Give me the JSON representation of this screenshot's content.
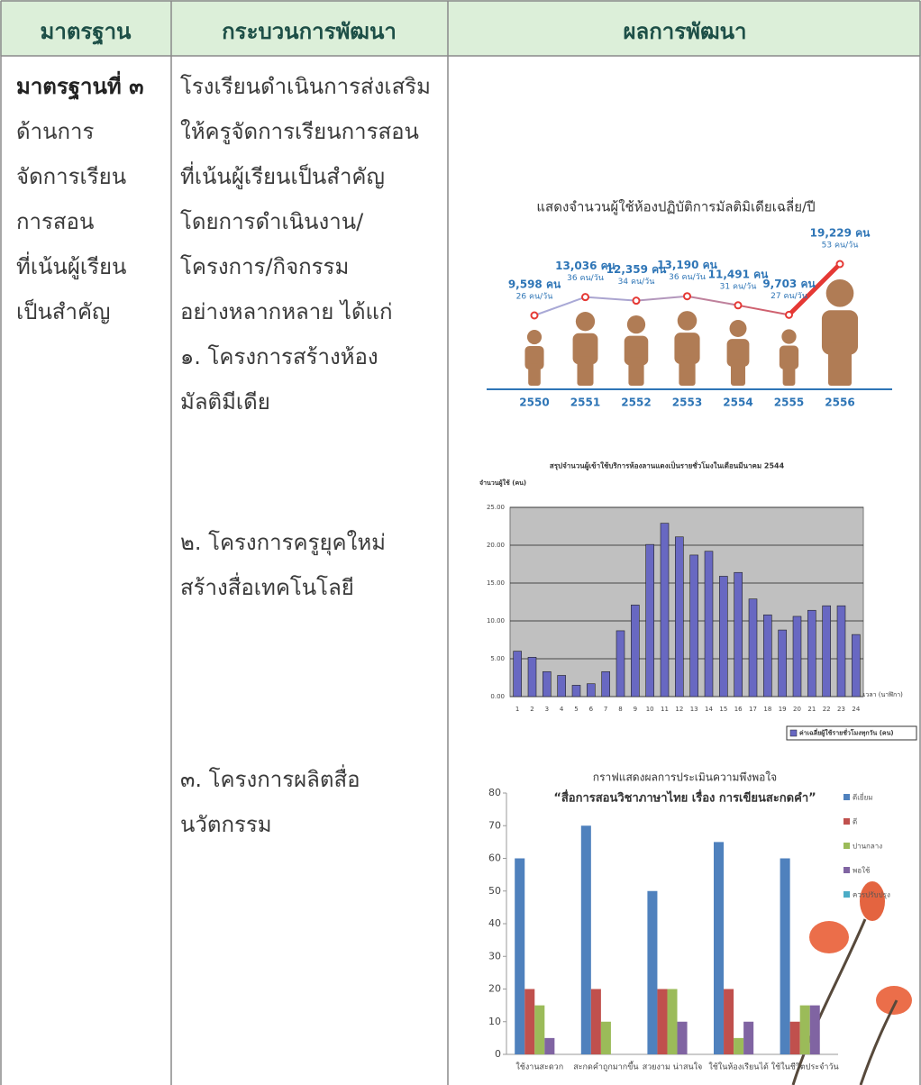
{
  "table": {
    "headers": [
      "มาตรฐาน",
      "กระบวนการพัฒนา",
      "ผลการพัฒนา"
    ],
    "rows": [
      {
        "standard": [
          "มาตรฐานที่ ๓",
          "ด้านการ",
          "จัดการเรียน",
          "การสอน",
          "ที่เน้นผู้เรียน",
          "เป็นสำคัญ"
        ],
        "process": {
          "intro": [
            "โรงเรียนดำเนินการส่งเสริม",
            "ให้ครูจัดการเรียนการสอน",
            "ที่เน้นผู้เรียนเป็นสำคัญ",
            "โดยการดำเนินงาน/",
            "โครงการ/กิจกรรม",
            "อย่างหลากหลาย ได้แก่"
          ],
          "items": [
            [
              "๑. โครงการสร้างห้อง",
              "มัลติมีเดีย"
            ],
            [
              "๒. โครงการครูยุคใหม่",
              "สร้างสื่อเทคโนโลยี"
            ],
            [
              "๓. โครงการผลิตสื่อ",
              "นวัตกรรม"
            ]
          ]
        }
      }
    ]
  },
  "chart_data": [
    {
      "type": "line",
      "title": "แสดงจำนวนผู้ใช้ห้องปฏิบัติการมัลติมิเดียเฉลี่ย/ปี",
      "categories": [
        "2550",
        "2551",
        "2552",
        "2553",
        "2554",
        "2555",
        "2556"
      ],
      "values": [
        9598,
        13036,
        12359,
        13190,
        11491,
        9703,
        19229
      ],
      "value_labels": [
        "9,598 คน",
        "13,036 คน",
        "12,359 คน",
        "13,190 คน",
        "11,491 คน",
        "9,703 คน",
        "19,229 คน"
      ],
      "daily_values": [
        26,
        36,
        34,
        36,
        31,
        27,
        53
      ],
      "daily_value_labels": [
        "26 คน/วัน",
        "36 คน/วัน",
        "34 คน/วัน",
        "36 คน/วัน",
        "31 คน/วัน",
        "27 คน/วัน",
        "53 คน/วัน"
      ],
      "color": "#e53935",
      "start_color": "#a9a9d6",
      "axis_color": "#2e75b6",
      "icon_color": "#b07c55"
    },
    {
      "type": "bar",
      "title": "สรุปจำนวนผู้เข้าใช้บริการห้องลานแดงเป็นรายชั่วโมงในเดือนมีนาคม 2544",
      "y_label": "จำนวนผู้ใช้ (คน)",
      "x_label": "เวลา (นาฬิกา)",
      "categories": [
        "1",
        "2",
        "3",
        "4",
        "5",
        "6",
        "7",
        "8",
        "9",
        "10",
        "11",
        "12",
        "13",
        "14",
        "15",
        "16",
        "17",
        "18",
        "19",
        "20",
        "21",
        "22",
        "23",
        "24"
      ],
      "series": [
        {
          "name": "ค่าเฉลี่ยผู้ใช้รายชั่วโมงทุกวัน (คน)",
          "color": "#6868c2",
          "values": [
            6.0,
            5.2,
            3.3,
            2.8,
            1.5,
            1.7,
            3.3,
            8.7,
            12.1,
            20.1,
            22.9,
            21.1,
            18.7,
            19.2,
            15.9,
            16.4,
            12.9,
            10.8,
            8.8,
            10.6,
            11.4,
            12.0,
            12.0,
            8.2
          ]
        }
      ],
      "ylim": [
        0,
        25
      ],
      "yticks": [
        {
          "value": 0,
          "label": "0.00"
        },
        {
          "value": 5,
          "label": "5.00"
        },
        {
          "value": 10,
          "label": "10.00"
        },
        {
          "value": 15,
          "label": "15.00"
        },
        {
          "value": 20,
          "label": "20.00"
        },
        {
          "value": 25,
          "label": "25.00"
        }
      ],
      "grid": true,
      "plot_color": "#c0c0c0",
      "legend": "bottom"
    },
    {
      "type": "bar",
      "title": "กราฟแสดงผลการประเมินความพึงพอใจ",
      "subtitle": "“สื่อการสอนวิชาภาษาไทย เรื่อง การเขียนสะกดคำ”",
      "categories": [
        "ใช้งานสะดวก",
        "สะกดคำถูกมากขึ้น",
        "สวยงาม น่าสนใจ",
        "ใช้ในห้องเรียนได้",
        "ใช้ในชีวิตประจำวัน"
      ],
      "series": [
        {
          "name": "ดีเยี่ยม",
          "color": "#4f81bd",
          "values": [
            60,
            70,
            50,
            65,
            60
          ]
        },
        {
          "name": "ดี",
          "color": "#c0504d",
          "values": [
            20,
            20,
            20,
            20,
            10
          ]
        },
        {
          "name": "ปานกลาง",
          "color": "#9bbb59",
          "values": [
            15,
            10,
            20,
            5,
            15
          ]
        },
        {
          "name": "พอใช้",
          "color": "#8064a2",
          "values": [
            5,
            0,
            10,
            10,
            15
          ]
        },
        {
          "name": "ควรปรับปรุง",
          "color": "#4bacc6",
          "values": [
            0,
            0,
            0,
            0,
            0
          ]
        }
      ],
      "ylim": [
        0,
        80
      ],
      "yticks": [
        0,
        10,
        20,
        30,
        40,
        50,
        60,
        70,
        80
      ],
      "grid": false,
      "legend": "right"
    }
  ]
}
